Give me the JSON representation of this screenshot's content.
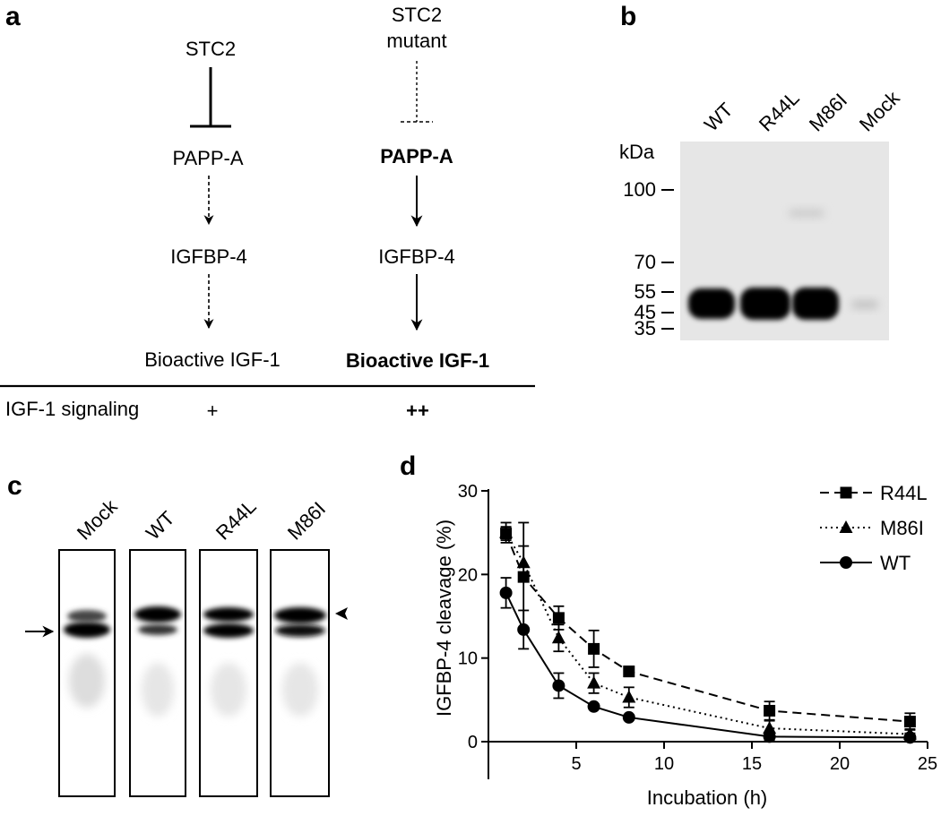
{
  "panels": {
    "a": {
      "label": "a",
      "left_column": {
        "nodes": [
          "STC2",
          "PAPP-A",
          "IGFBP-4",
          "Bioactive IGF-1"
        ],
        "signaling": "+"
      },
      "right_column": {
        "nodes": [
          "STC2\nmutant",
          "PAPP-A",
          "IGFBP-4",
          "Bioactive IGF-1"
        ],
        "title_line1": "STC2",
        "title_line2": "mutant",
        "signaling": "++"
      },
      "row_label": "IGF-1 signaling"
    },
    "b": {
      "label": "b",
      "lanes": [
        "WT",
        "R44L",
        "M86I",
        "Mock"
      ],
      "unit_label": "kDa",
      "markers": [
        "100",
        "70",
        "55",
        "45",
        "35"
      ],
      "marker_values_kda": [
        100,
        70,
        55,
        45,
        35
      ],
      "background": "#e6e6e6"
    },
    "c": {
      "label": "c",
      "lanes": [
        "Mock",
        "WT",
        "R44L",
        "M86I"
      ],
      "arrow_icon": "right-arrow-icon",
      "arrowhead_icon": "left-arrowhead-icon"
    }
  },
  "chart_data": {
    "type": "line",
    "panel_label": "d",
    "xlabel": "Incubation (h)",
    "ylabel": "IGFBP-4 cleavage (%)",
    "xlim": [
      0,
      25
    ],
    "ylim": [
      0,
      30
    ],
    "xticks": [
      0,
      5,
      10,
      15,
      20,
      25
    ],
    "xtick_labels": [
      "",
      "5",
      "10",
      "15",
      "20",
      "25"
    ],
    "yticks": [
      0,
      10,
      20,
      30
    ],
    "ytick_labels": [
      "0",
      "10",
      "20",
      "30"
    ],
    "grid": false,
    "legend_position": "top-right",
    "series": [
      {
        "name": "R44L",
        "marker": "square",
        "line": "dashed",
        "x": [
          1,
          2,
          4,
          6,
          8,
          16,
          24
        ],
        "y": [
          24.9,
          19.7,
          14.8,
          11.1,
          8.4,
          3.7,
          2.4
        ],
        "err": [
          0.8,
          6.5,
          1.4,
          2.2,
          0.6,
          1.1,
          1.0
        ]
      },
      {
        "name": "M86I",
        "marker": "triangle",
        "line": "dotted",
        "x": [
          1,
          2,
          4,
          6,
          8,
          16,
          24
        ],
        "y": [
          25.0,
          21.4,
          12.4,
          7.0,
          5.3,
          1.6,
          0.9
        ],
        "err": [
          1.2,
          2.0,
          1.6,
          1.2,
          1.2,
          0.9,
          0.6
        ]
      },
      {
        "name": "WT",
        "marker": "circle",
        "line": "solid",
        "x": [
          1,
          2,
          4,
          6,
          8,
          16,
          24
        ],
        "y": [
          17.8,
          13.4,
          6.7,
          4.2,
          2.9,
          0.6,
          0.5
        ],
        "err": [
          1.8,
          2.3,
          1.5,
          0.3,
          0.3,
          0.5,
          0.5
        ]
      }
    ]
  }
}
